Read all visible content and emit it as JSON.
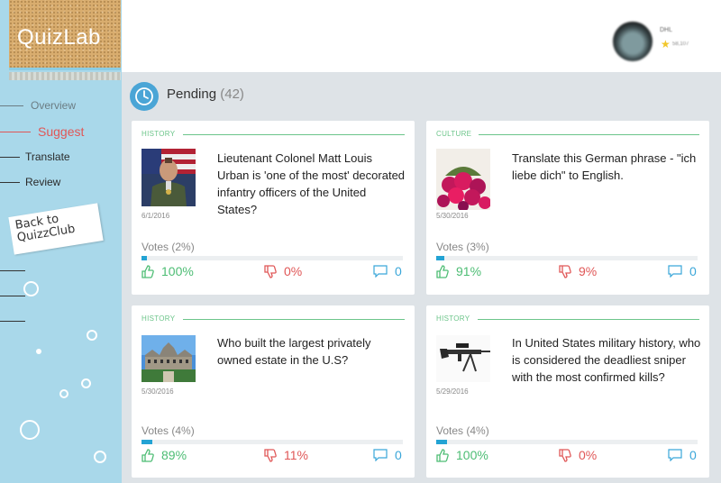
{
  "brand": {
    "logo": "QuizLab"
  },
  "sidebar": {
    "items": [
      {
        "label": "Overview"
      },
      {
        "label": "Suggest"
      },
      {
        "label": "Translate"
      },
      {
        "label": "Review"
      }
    ],
    "back_label": "Back to QuizzClub"
  },
  "user": {
    "name": "DHL",
    "points": "58,107"
  },
  "pending": {
    "title": "Pending",
    "count": "(42)"
  },
  "cards": [
    {
      "category": "HISTORY",
      "date": "6/1/2016",
      "question": "Lieutenant Colonel Matt Louis Urban is 'one of the most' decorated infantry officers of the United States?",
      "votes_label": "Votes (2%)",
      "votes_fraction": 0.02,
      "up": "100%",
      "down": "0%",
      "comments": "0",
      "image": "soldier-portrait"
    },
    {
      "category": "CULTURE",
      "date": "5/30/2016",
      "question": "Translate this German phrase - \"ich liebe dich\" to English.",
      "votes_label": "Votes (3%)",
      "votes_fraction": 0.03,
      "up": "91%",
      "down": "9%",
      "comments": "0",
      "image": "roses"
    },
    {
      "category": "HISTORY",
      "date": "5/30/2016",
      "question": "Who built the largest privately owned estate in the U.S?",
      "votes_label": "Votes (4%)",
      "votes_fraction": 0.04,
      "up": "89%",
      "down": "11%",
      "comments": "0",
      "image": "mansion"
    },
    {
      "category": "HISTORY",
      "date": "5/29/2016",
      "question": "In United States military history, who is considered the deadliest sniper with the most confirmed kills?",
      "votes_label": "Votes (4%)",
      "votes_fraction": 0.04,
      "up": "100%",
      "down": "0%",
      "comments": "0",
      "image": "sniper-rifle"
    }
  ],
  "colors": {
    "sidebar": "#a9d8ea",
    "accent": "#23a3d4",
    "up": "#4dbd74",
    "down": "#e05757",
    "category": "#6cc58a",
    "active_nav": "#e05757"
  }
}
